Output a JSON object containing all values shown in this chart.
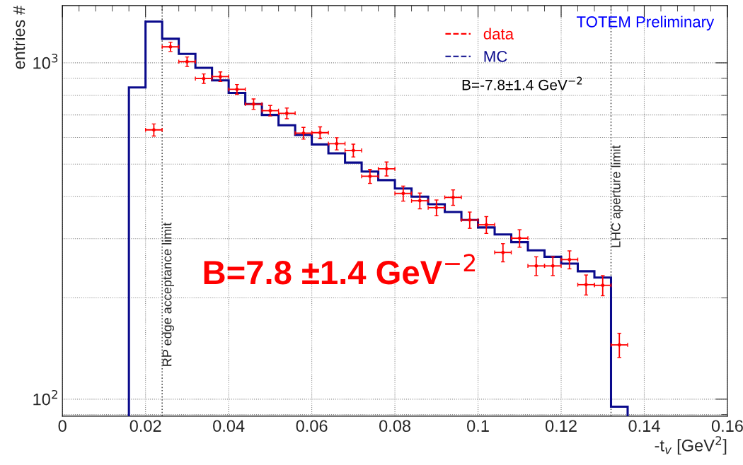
{
  "chart_data": {
    "type": "histogram",
    "xlabel": "-t$_{v}$ [GeV$^{2}$]",
    "ylabel": "entries #",
    "annotations": [
      "TOTEM Preliminary",
      "B=-7.8±1.4 GeV$^{−2}$",
      "B=7.8 ±1.4 GeV$^{−2}$"
    ],
    "series": [
      {
        "name": "MC",
        "color": "#0a0a8c",
        "bins": [
          0.016,
          0.02,
          0.024,
          0.028,
          0.032,
          0.036,
          0.04,
          0.044,
          0.048,
          0.052,
          0.056,
          0.06,
          0.064,
          0.068,
          0.072,
          0.076,
          0.08,
          0.084,
          0.088,
          0.092,
          0.096,
          0.1,
          0.104,
          0.108,
          0.112,
          0.116,
          0.12,
          0.124,
          0.128,
          0.132,
          0.136
        ],
        "values": [
          845,
          1327,
          1179,
          1063,
          966,
          887,
          814,
          754,
          700,
          652,
          610,
          572,
          538,
          505,
          475,
          448,
          423,
          400,
          380,
          360,
          341,
          324,
          309,
          293,
          277,
          265,
          253,
          240,
          230,
          95
        ]
      },
      {
        "name": "data",
        "type": "scatter",
        "color": "#ff0000",
        "x": [
          0.022,
          0.026,
          0.03,
          0.034,
          0.038,
          0.042,
          0.046,
          0.05,
          0.054,
          0.058,
          0.062,
          0.066,
          0.07,
          0.074,
          0.078,
          0.082,
          0.086,
          0.09,
          0.094,
          0.098,
          0.102,
          0.106,
          0.11,
          0.114,
          0.118,
          0.122,
          0.126,
          0.13,
          0.134
        ],
        "values": [
          632,
          1116,
          1008,
          898,
          910,
          834,
          754,
          721,
          708,
          618,
          620,
          575,
          549,
          460,
          484,
          409,
          389,
          371,
          398,
          341,
          330,
          273,
          301,
          249,
          249,
          260,
          219,
          218,
          145
        ],
        "errors": [
          26,
          35,
          33,
          29,
          30,
          28,
          27,
          26,
          26,
          25,
          25,
          24,
          24,
          22,
          23,
          21,
          21,
          20,
          21,
          19,
          19,
          17,
          18,
          16,
          16,
          16,
          15,
          15,
          12
        ],
        "xerrors": [
          0.002,
          0.002,
          0.002,
          0.002,
          0.002,
          0.002,
          0.002,
          0.002,
          0.002,
          0.002,
          0.002,
          0.002,
          0.002,
          0.002,
          0.002,
          0.002,
          0.002,
          0.002,
          0.002,
          0.002,
          0.002,
          0.002,
          0.002,
          0.002,
          0.002,
          0.002,
          0.002,
          0.002,
          0.002
        ]
      }
    ],
    "ref_lines": [
      {
        "axis": "x",
        "value": 0.024,
        "label": "RP edge acceptance limit",
        "color": "#555555",
        "line_style": "dotted"
      },
      {
        "axis": "x",
        "value": 0.132,
        "label": "LHC aperture limit",
        "color": "#555555",
        "line_style": "dotted"
      }
    ],
    "log": "y",
    "xlim": [
      0,
      0.16
    ],
    "xticks": [
      0,
      0.02,
      0.04,
      0.06,
      0.08,
      0.1,
      0.12,
      0.14,
      0.16
    ],
    "ylim": [
      89,
      1480
    ],
    "yticks": [
      {
        "value": 100,
        "label": "10$^{2}$"
      },
      {
        "value": 1000,
        "label": "10$^{3}$"
      }
    ],
    "grid": true,
    "legend": "top right"
  }
}
